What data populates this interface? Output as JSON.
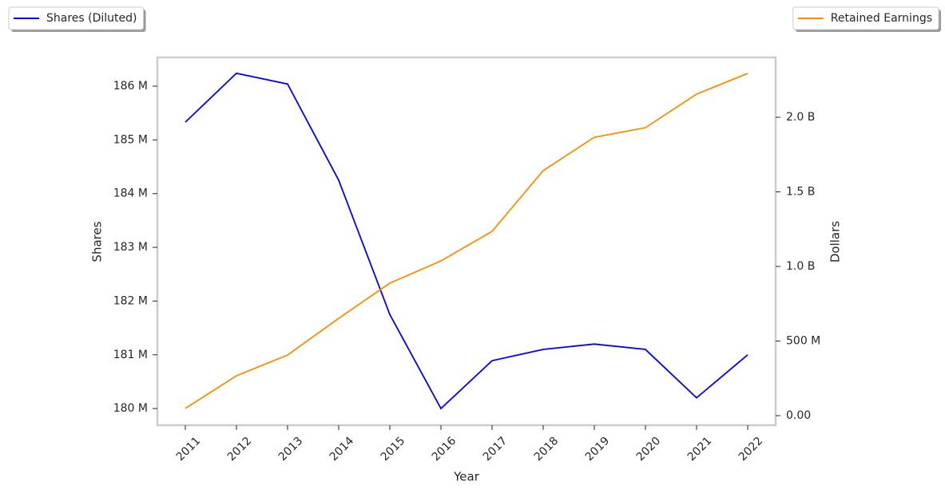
{
  "chart_data": {
    "type": "line",
    "x_label": "Year",
    "y_label": "Shares",
    "y2_label": "Dollars",
    "categories": [
      "2011",
      "2012",
      "2013",
      "2014",
      "2015",
      "2016",
      "2017",
      "2018",
      "2019",
      "2020",
      "2021",
      "2022"
    ],
    "series": [
      {
        "name": "Shares (Diluted)",
        "color": "#0000ff",
        "legend_loc": "upper left",
        "values": [
          185330000,
          186240000,
          186040000,
          184250000,
          181750000,
          180000000,
          180890000,
          181100000,
          181200000,
          181100000,
          180200000,
          181000000
        ]
      },
      {
        "name": "Retained Earnings",
        "color": "#ff8c00",
        "axis": "y2",
        "legend_loc": "upper right",
        "values": [
          48000000,
          267000000,
          406000000,
          652000000,
          888000000,
          1037000000,
          1235000000,
          1642000000,
          1866000000,
          1930000000,
          2155000000,
          2294000000
        ]
      }
    ],
    "ylim": [
      179690000,
      186535000
    ],
    "yticks": [
      {
        "value": 180000000,
        "label": "180 M"
      },
      {
        "value": 181000000,
        "label": "181 M"
      },
      {
        "value": 182000000,
        "label": "182 M"
      },
      {
        "value": 183000000,
        "label": "183 M"
      },
      {
        "value": 184000000,
        "label": "184 M"
      },
      {
        "value": 185000000,
        "label": "185 M"
      },
      {
        "value": 186000000,
        "label": "186 M"
      }
    ],
    "y2lim": [
      -64000000,
      2401000000
    ],
    "y2ticks": [
      {
        "value": 0,
        "label": "0.00"
      },
      {
        "value": 500000000,
        "label": "500 M"
      },
      {
        "value": 1000000000,
        "label": "1.0 B"
      },
      {
        "value": 1500000000,
        "label": "1.5 B"
      },
      {
        "value": 2000000000,
        "label": "2.0 B"
      }
    ],
    "grid": false
  }
}
